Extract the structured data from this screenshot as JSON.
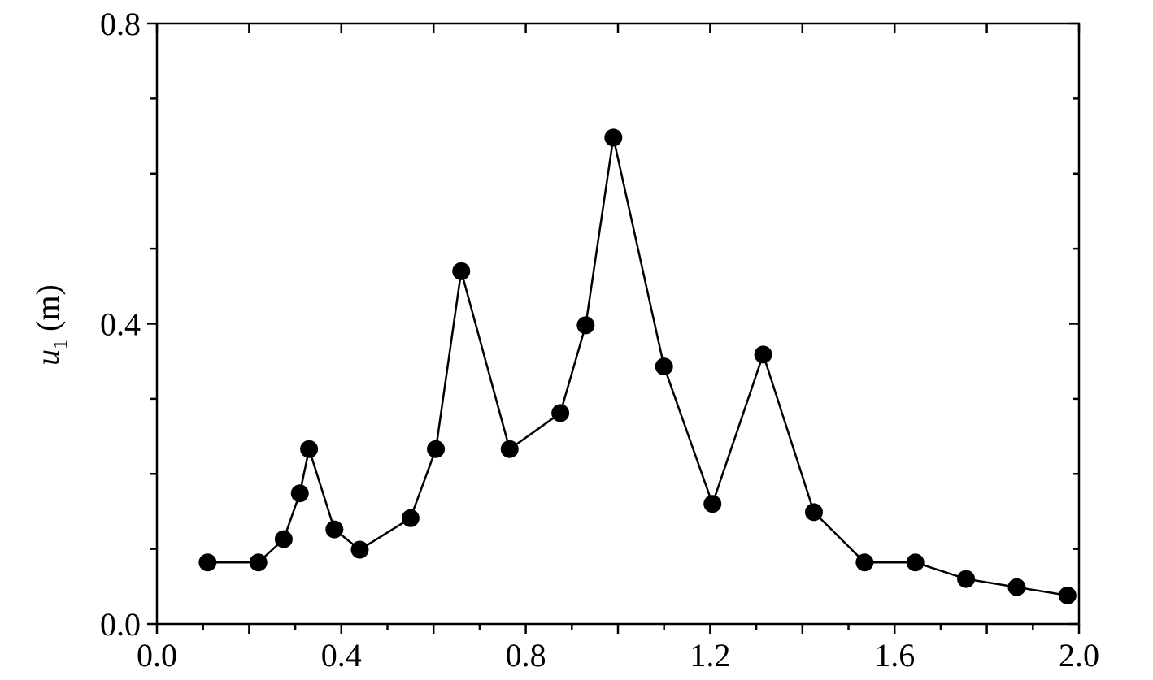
{
  "chart_data": {
    "type": "line",
    "ylabel": {
      "symbol": "u",
      "subscript": "1",
      "unit": "(m)"
    },
    "xlim": [
      0,
      2.0
    ],
    "ylim": [
      0,
      0.8
    ],
    "xticks": [
      {
        "value": 0,
        "label": "0.0"
      },
      0.4,
      0.8,
      1.2,
      1.6,
      {
        "value": 2,
        "label": "2.0"
      }
    ],
    "xminorticks": [
      0.1,
      0.2,
      0.3,
      0.5,
      0.6,
      0.7,
      0.9,
      1.0,
      1.1,
      1.3,
      1.4,
      1.5,
      1.7,
      1.8,
      1.9
    ],
    "yticks": [
      {
        "value": 0,
        "label": "0.0"
      },
      0.4,
      0.8
    ],
    "yminorticks": [
      0.1,
      0.2,
      0.3,
      0.5,
      0.6,
      0.7
    ],
    "series": [
      {
        "color": "#000000",
        "x": [
          0.11,
          0.22,
          0.275,
          0.31,
          0.33,
          0.385,
          0.44,
          0.55,
          0.605,
          0.66,
          0.765,
          0.875,
          0.93,
          0.99,
          1.1,
          1.205,
          1.315,
          1.425,
          1.535,
          1.645,
          1.755,
          1.865,
          1.975
        ],
        "values": [
          0.082,
          0.082,
          0.113,
          0.174,
          0.233,
          0.126,
          0.099,
          0.141,
          0.233,
          0.47,
          0.233,
          0.281,
          0.398,
          0.648,
          0.343,
          0.16,
          0.359,
          0.149,
          0.082,
          0.082,
          0.06,
          0.049,
          0.038
        ]
      }
    ]
  }
}
